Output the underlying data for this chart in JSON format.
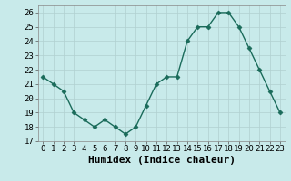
{
  "x": [
    0,
    1,
    2,
    3,
    4,
    5,
    6,
    7,
    8,
    9,
    10,
    11,
    12,
    13,
    14,
    15,
    16,
    17,
    18,
    19,
    20,
    21,
    22,
    23
  ],
  "y": [
    21.5,
    21.0,
    20.5,
    19.0,
    18.5,
    18.0,
    18.5,
    18.0,
    17.5,
    18.0,
    19.5,
    21.0,
    21.5,
    21.5,
    24.0,
    25.0,
    25.0,
    26.0,
    26.0,
    25.0,
    23.5,
    22.0,
    20.5,
    19.0
  ],
  "xlabel": "Humidex (Indice chaleur)",
  "ylim": [
    17,
    26.5
  ],
  "xlim": [
    -0.5,
    23.5
  ],
  "yticks": [
    17,
    18,
    19,
    20,
    21,
    22,
    23,
    24,
    25,
    26
  ],
  "xticks": [
    0,
    1,
    2,
    3,
    4,
    5,
    6,
    7,
    8,
    9,
    10,
    11,
    12,
    13,
    14,
    15,
    16,
    17,
    18,
    19,
    20,
    21,
    22,
    23
  ],
  "line_color": "#1a6b5a",
  "marker": "D",
  "marker_size": 2.5,
  "line_width": 1.0,
  "bg_color": "#c8eaea",
  "grid_color": "#b0d0d0",
  "tick_labelsize": 6.5,
  "xlabel_fontsize": 8
}
